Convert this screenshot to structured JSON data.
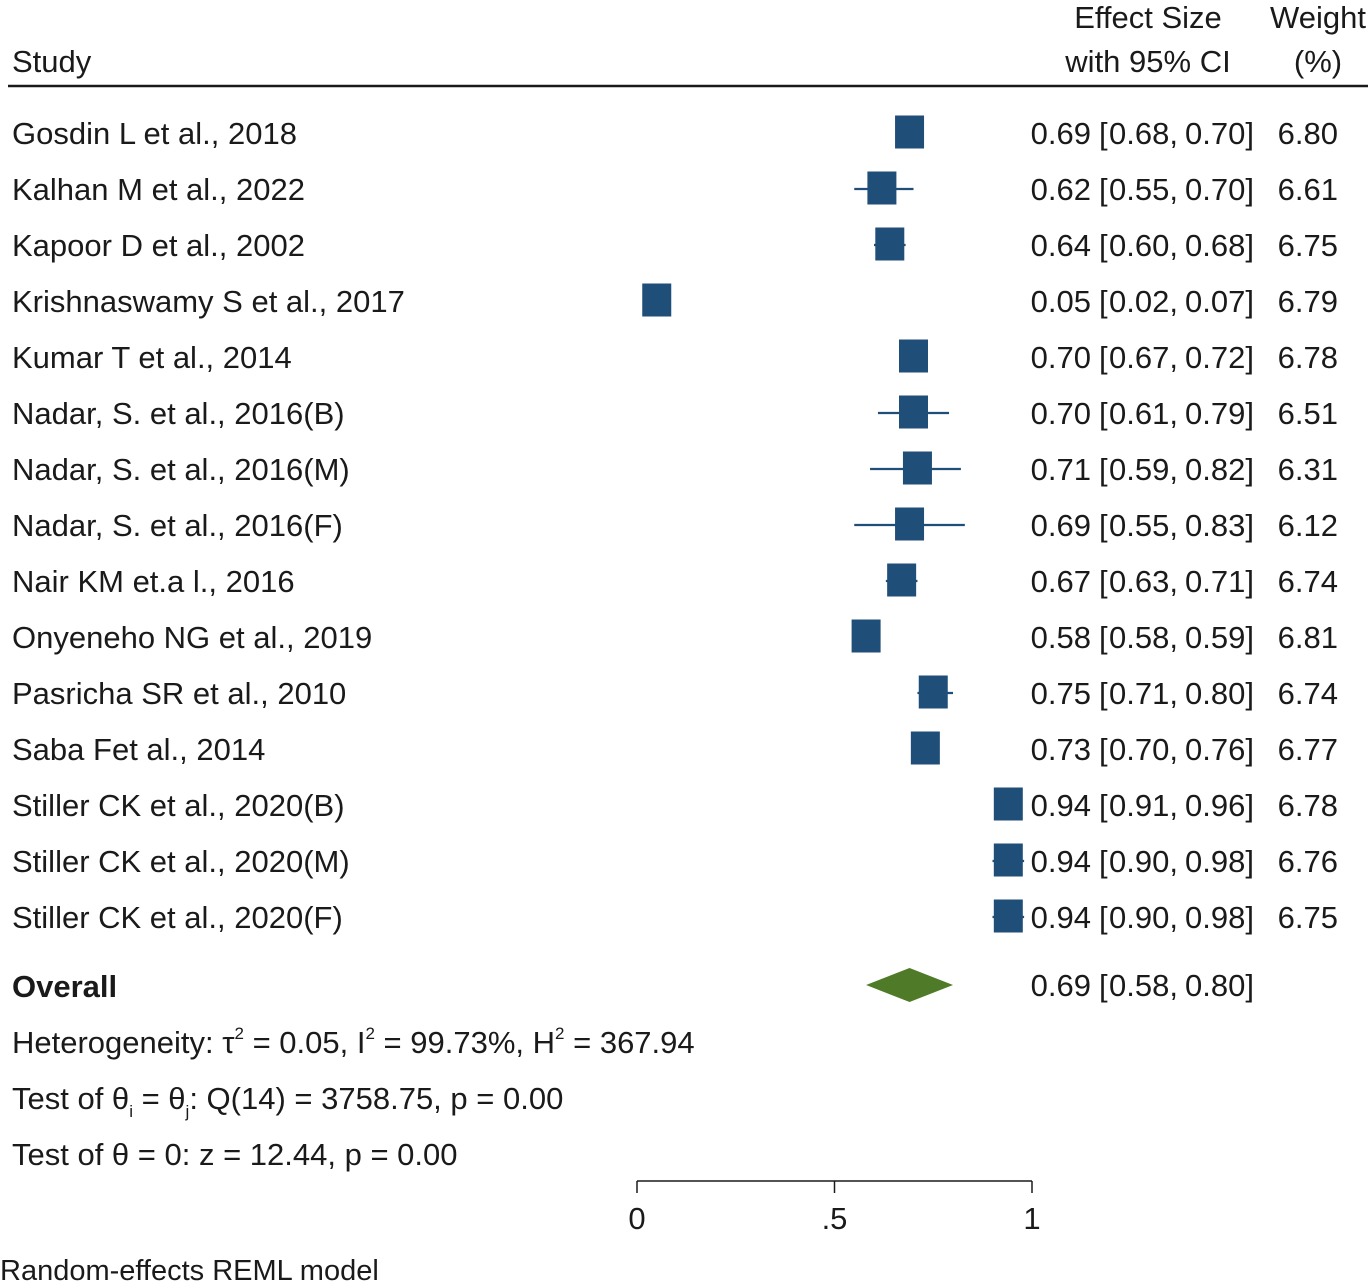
{
  "header": {
    "study_label": "Study",
    "effect_label_line1": "Effect Size",
    "effect_label_line2": "with 95% CI",
    "weight_label_line1": "Weight",
    "weight_label_line2": "(%)"
  },
  "colors": {
    "study_marker": "#1f4e79",
    "overall_diamond": "#4f7a28",
    "text": "#1a1a1a"
  },
  "chart_data": {
    "type": "forest",
    "studies": [
      {
        "name": "Gosdin L et al., 2018",
        "es": 0.69,
        "lo": 0.68,
        "hi": 0.7,
        "es_text": "0.69",
        "lo_text": "0.68",
        "hi_text": "0.70",
        "weight": "6.80"
      },
      {
        "name": "Kalhan M et al., 2022",
        "es": 0.62,
        "lo": 0.55,
        "hi": 0.7,
        "es_text": "0.62",
        "lo_text": "0.55",
        "hi_text": "0.70",
        "weight": "6.61"
      },
      {
        "name": "Kapoor D et al., 2002",
        "es": 0.64,
        "lo": 0.6,
        "hi": 0.68,
        "es_text": "0.64",
        "lo_text": "0.60",
        "hi_text": "0.68",
        "weight": "6.75"
      },
      {
        "name": "Krishnaswamy S et al., 2017",
        "es": 0.05,
        "lo": 0.02,
        "hi": 0.07,
        "es_text": "0.05",
        "lo_text": "0.02",
        "hi_text": "0.07",
        "weight": "6.79"
      },
      {
        "name": "Kumar T et al., 2014",
        "es": 0.7,
        "lo": 0.67,
        "hi": 0.72,
        "es_text": "0.70",
        "lo_text": "0.67",
        "hi_text": "0.72",
        "weight": "6.78"
      },
      {
        "name": "Nadar, S. et al., 2016(B)",
        "es": 0.7,
        "lo": 0.61,
        "hi": 0.79,
        "es_text": "0.70",
        "lo_text": "0.61",
        "hi_text": "0.79",
        "weight": "6.51"
      },
      {
        "name": "Nadar, S. et al., 2016(M)",
        "es": 0.71,
        "lo": 0.59,
        "hi": 0.82,
        "es_text": "0.71",
        "lo_text": "0.59",
        "hi_text": "0.82",
        "weight": "6.31"
      },
      {
        "name": "Nadar, S. et al., 2016(F)",
        "es": 0.69,
        "lo": 0.55,
        "hi": 0.83,
        "es_text": "0.69",
        "lo_text": "0.55",
        "hi_text": "0.83",
        "weight": "6.12"
      },
      {
        "name": "Nair KM et.a l., 2016",
        "es": 0.67,
        "lo": 0.63,
        "hi": 0.71,
        "es_text": "0.67",
        "lo_text": "0.63",
        "hi_text": "0.71",
        "weight": "6.74"
      },
      {
        "name": "Onyeneho NG et al., 2019",
        "es": 0.58,
        "lo": 0.58,
        "hi": 0.59,
        "es_text": "0.58",
        "lo_text": "0.58",
        "hi_text": "0.59",
        "weight": "6.81"
      },
      {
        "name": "Pasricha SR et al., 2010",
        "es": 0.75,
        "lo": 0.71,
        "hi": 0.8,
        "es_text": "0.75",
        "lo_text": "0.71",
        "hi_text": "0.80",
        "weight": "6.74"
      },
      {
        "name": "Saba Fet al., 2014",
        "es": 0.73,
        "lo": 0.7,
        "hi": 0.76,
        "es_text": "0.73",
        "lo_text": "0.70",
        "hi_text": "0.76",
        "weight": "6.77"
      },
      {
        "name": "Stiller CK et al., 2020(B)",
        "es": 0.94,
        "lo": 0.91,
        "hi": 0.96,
        "es_text": "0.94",
        "lo_text": "0.91",
        "hi_text": "0.96",
        "weight": "6.78"
      },
      {
        "name": "Stiller CK et al., 2020(M)",
        "es": 0.94,
        "lo": 0.9,
        "hi": 0.98,
        "es_text": "0.94",
        "lo_text": "0.90",
        "hi_text": "0.98",
        "weight": "6.76"
      },
      {
        "name": "Stiller CK et al., 2020(F)",
        "es": 0.94,
        "lo": 0.9,
        "hi": 0.98,
        "es_text": "0.94",
        "lo_text": "0.90",
        "hi_text": "0.98",
        "weight": "6.75"
      }
    ],
    "overall": {
      "label": "Overall",
      "es": 0.69,
      "lo": 0.58,
      "hi": 0.8,
      "es_text": "0.69",
      "lo_text": "0.58",
      "hi_text": "0.80"
    },
    "heterogeneity": {
      "prefix": "Heterogeneity: τ",
      "tau2": " = 0.05, I",
      "i2": " = 99.73%, H",
      "h2": " = 367.94",
      "sup": "2"
    },
    "test_homogeneity": {
      "part1": "Test of θ",
      "sub_i": "i",
      "part2": " = θ",
      "sub_j": "j",
      "part3": ": Q(14) = 3758.75, p = 0.00"
    },
    "test_zero": "Test of θ = 0: z = 12.44, p = 0.00",
    "x_axis": {
      "range": [
        0,
        1
      ],
      "ticks": [
        0,
        0.5,
        1
      ],
      "tick_labels": [
        "0",
        ".5",
        "1"
      ]
    },
    "model_note": "Random-effects REML model"
  }
}
